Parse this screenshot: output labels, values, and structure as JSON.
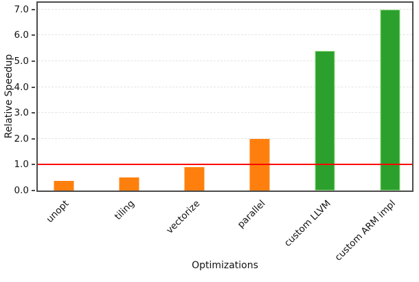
{
  "chart_data": {
    "type": "bar",
    "title": "",
    "xlabel": "Optimizations",
    "ylabel": "Relative Speedup",
    "categories": [
      "unopt",
      "tiling",
      "vectorize",
      "parallel",
      "custom LLVM",
      "custom ARM impl"
    ],
    "values": [
      0.37,
      0.5,
      0.9,
      2.0,
      5.4,
      7.0
    ],
    "bar_colors": [
      "#ff7f0e",
      "#ff7f0e",
      "#ff7f0e",
      "#ff7f0e",
      "#2ca02c",
      "#2ca02c"
    ],
    "bar_edge_colors": [
      "none",
      "none",
      "none",
      "none",
      "#98df8a",
      "#98df8a"
    ],
    "yticks": [
      "0.0",
      "1.0",
      "2.0",
      "3.0",
      "4.0",
      "5.0",
      "6.0",
      "7.0"
    ],
    "ylim": [
      0,
      7.26
    ],
    "grid": {
      "axis": "y",
      "style": "dashed",
      "color": "#e3e3e3"
    },
    "reference_line": {
      "y": 1.0,
      "color": "#ff0000"
    },
    "legend": "none",
    "orange_color": "#ff7f0e",
    "green_color": "#2ca02c",
    "axis_color": "#4a4a4a"
  }
}
